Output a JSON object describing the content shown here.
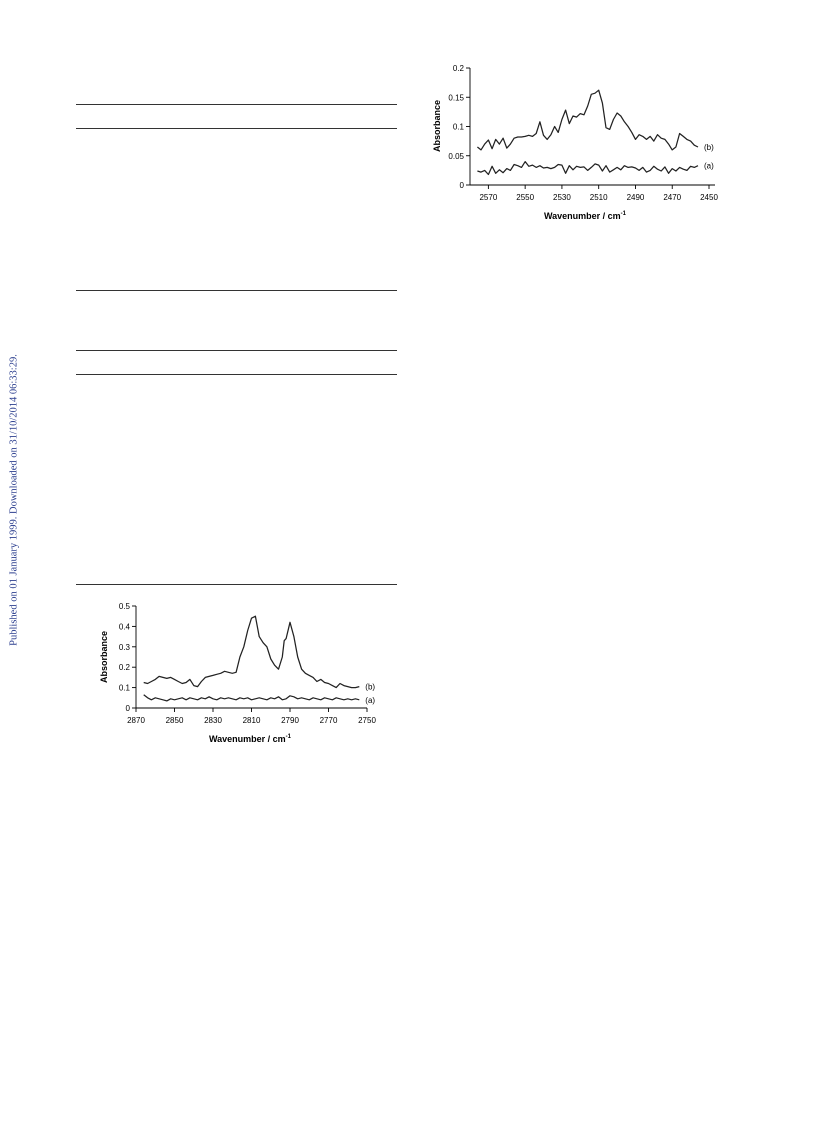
{
  "sidenote": "Published on 01 January 1999. Downloaded on 31/10/2014 06:33:29.",
  "chart_data": [
    {
      "type": "line",
      "title": "",
      "xlabel": "Wavenumber / cm",
      "xlabel_sup": "-1",
      "ylabel": "Absorbance",
      "xlim": [
        2450,
        2580
      ],
      "ylim": [
        0,
        0.2
      ],
      "x_reversed": true,
      "x_ticks": [
        2570,
        2550,
        2530,
        2510,
        2490,
        2470,
        2450
      ],
      "y_ticks": [
        0,
        0.05,
        0.1,
        0.15,
        0.2
      ],
      "grid": false,
      "legend": "inline labels at right end of each trace",
      "series": [
        {
          "name": "(b)",
          "x": [
            2576,
            2574,
            2572,
            2570,
            2568,
            2566,
            2564,
            2562,
            2560,
            2558,
            2556,
            2554,
            2552,
            2550,
            2548,
            2546,
            2544,
            2542,
            2540,
            2538,
            2536,
            2534,
            2532,
            2530,
            2528,
            2526,
            2524,
            2522,
            2520,
            2518,
            2516,
            2514,
            2512,
            2510,
            2508,
            2506,
            2504,
            2502,
            2500,
            2498,
            2496,
            2494,
            2492,
            2490,
            2488,
            2486,
            2484,
            2482,
            2480,
            2478,
            2476,
            2474,
            2472,
            2470,
            2468,
            2466,
            2464,
            2462,
            2460,
            2458,
            2456
          ],
          "y": [
            0.065,
            0.06,
            0.07,
            0.077,
            0.062,
            0.078,
            0.07,
            0.08,
            0.063,
            0.07,
            0.08,
            0.082,
            0.082,
            0.083,
            0.085,
            0.083,
            0.088,
            0.108,
            0.085,
            0.078,
            0.086,
            0.1,
            0.09,
            0.112,
            0.128,
            0.105,
            0.118,
            0.116,
            0.122,
            0.12,
            0.135,
            0.155,
            0.157,
            0.162,
            0.14,
            0.098,
            0.095,
            0.112,
            0.123,
            0.118,
            0.108,
            0.1,
            0.09,
            0.078,
            0.086,
            0.083,
            0.078,
            0.083,
            0.075,
            0.086,
            0.08,
            0.078,
            0.07,
            0.06,
            0.065,
            0.088,
            0.083,
            0.078,
            0.075,
            0.068,
            0.065
          ]
        },
        {
          "name": "(a)",
          "x": [
            2576,
            2574,
            2572,
            2570,
            2568,
            2566,
            2564,
            2562,
            2560,
            2558,
            2556,
            2554,
            2552,
            2550,
            2548,
            2546,
            2544,
            2542,
            2540,
            2538,
            2536,
            2534,
            2532,
            2530,
            2528,
            2526,
            2524,
            2522,
            2520,
            2518,
            2516,
            2514,
            2512,
            2510,
            2508,
            2506,
            2504,
            2502,
            2500,
            2498,
            2496,
            2494,
            2492,
            2490,
            2488,
            2486,
            2484,
            2482,
            2480,
            2478,
            2476,
            2474,
            2472,
            2470,
            2468,
            2466,
            2464,
            2462,
            2460,
            2458,
            2456
          ],
          "y": [
            0.024,
            0.022,
            0.025,
            0.018,
            0.032,
            0.02,
            0.026,
            0.021,
            0.028,
            0.025,
            0.035,
            0.033,
            0.03,
            0.04,
            0.032,
            0.034,
            0.03,
            0.033,
            0.029,
            0.03,
            0.028,
            0.03,
            0.035,
            0.034,
            0.02,
            0.033,
            0.026,
            0.032,
            0.03,
            0.031,
            0.025,
            0.03,
            0.036,
            0.034,
            0.024,
            0.033,
            0.022,
            0.026,
            0.03,
            0.026,
            0.033,
            0.03,
            0.031,
            0.029,
            0.025,
            0.03,
            0.022,
            0.025,
            0.032,
            0.027,
            0.024,
            0.031,
            0.02,
            0.028,
            0.024,
            0.03,
            0.027,
            0.025,
            0.032,
            0.03,
            0.033
          ]
        }
      ]
    },
    {
      "type": "line",
      "title": "",
      "xlabel": "Wavenumber / cm",
      "xlabel_sup": "-1",
      "ylabel": "Absorbance",
      "xlim": [
        2750,
        2870
      ],
      "ylim": [
        0,
        0.5
      ],
      "x_reversed": true,
      "x_ticks": [
        2870,
        2850,
        2830,
        2810,
        2790,
        2770,
        2750
      ],
      "y_ticks": [
        0,
        0.1,
        0.2,
        0.3,
        0.4,
        0.5
      ],
      "grid": false,
      "legend": "inline labels at right end of each trace",
      "series": [
        {
          "name": "(b)",
          "x": [
            2866,
            2864,
            2862,
            2860,
            2858,
            2856,
            2854,
            2852,
            2850,
            2848,
            2846,
            2844,
            2842,
            2840,
            2838,
            2836,
            2834,
            2832,
            2830,
            2828,
            2826,
            2824,
            2822,
            2820,
            2818,
            2816,
            2814,
            2812,
            2810,
            2808,
            2806,
            2804,
            2802,
            2800,
            2798,
            2796,
            2794,
            2793,
            2792,
            2790,
            2788,
            2786,
            2784,
            2782,
            2780,
            2778,
            2776,
            2774,
            2772,
            2770,
            2768,
            2766,
            2764,
            2762,
            2760,
            2758,
            2756,
            2754
          ],
          "y": [
            0.125,
            0.12,
            0.13,
            0.14,
            0.155,
            0.15,
            0.145,
            0.15,
            0.14,
            0.13,
            0.12,
            0.125,
            0.14,
            0.11,
            0.105,
            0.13,
            0.15,
            0.155,
            0.16,
            0.165,
            0.17,
            0.18,
            0.175,
            0.17,
            0.175,
            0.25,
            0.3,
            0.38,
            0.44,
            0.45,
            0.35,
            0.32,
            0.3,
            0.24,
            0.21,
            0.19,
            0.25,
            0.33,
            0.34,
            0.42,
            0.35,
            0.25,
            0.19,
            0.17,
            0.16,
            0.15,
            0.13,
            0.14,
            0.125,
            0.12,
            0.11,
            0.1,
            0.12,
            0.11,
            0.105,
            0.1,
            0.1,
            0.105
          ]
        },
        {
          "name": "(a)",
          "x": [
            2866,
            2864,
            2862,
            2860,
            2858,
            2856,
            2854,
            2852,
            2850,
            2848,
            2846,
            2844,
            2842,
            2840,
            2838,
            2836,
            2834,
            2832,
            2830,
            2828,
            2826,
            2824,
            2822,
            2820,
            2818,
            2816,
            2814,
            2812,
            2810,
            2808,
            2806,
            2804,
            2802,
            2800,
            2798,
            2796,
            2794,
            2792,
            2790,
            2788,
            2786,
            2784,
            2782,
            2780,
            2778,
            2776,
            2774,
            2772,
            2770,
            2768,
            2766,
            2764,
            2762,
            2760,
            2758,
            2756,
            2754
          ],
          "y": [
            0.065,
            0.05,
            0.04,
            0.05,
            0.045,
            0.04,
            0.035,
            0.045,
            0.04,
            0.045,
            0.05,
            0.04,
            0.05,
            0.045,
            0.04,
            0.05,
            0.045,
            0.055,
            0.045,
            0.04,
            0.05,
            0.045,
            0.05,
            0.045,
            0.04,
            0.05,
            0.045,
            0.05,
            0.04,
            0.045,
            0.05,
            0.045,
            0.04,
            0.05,
            0.045,
            0.055,
            0.04,
            0.045,
            0.06,
            0.055,
            0.045,
            0.05,
            0.045,
            0.04,
            0.05,
            0.045,
            0.04,
            0.05,
            0.045,
            0.04,
            0.05,
            0.045,
            0.04,
            0.045,
            0.04,
            0.045,
            0.04
          ]
        }
      ]
    }
  ]
}
